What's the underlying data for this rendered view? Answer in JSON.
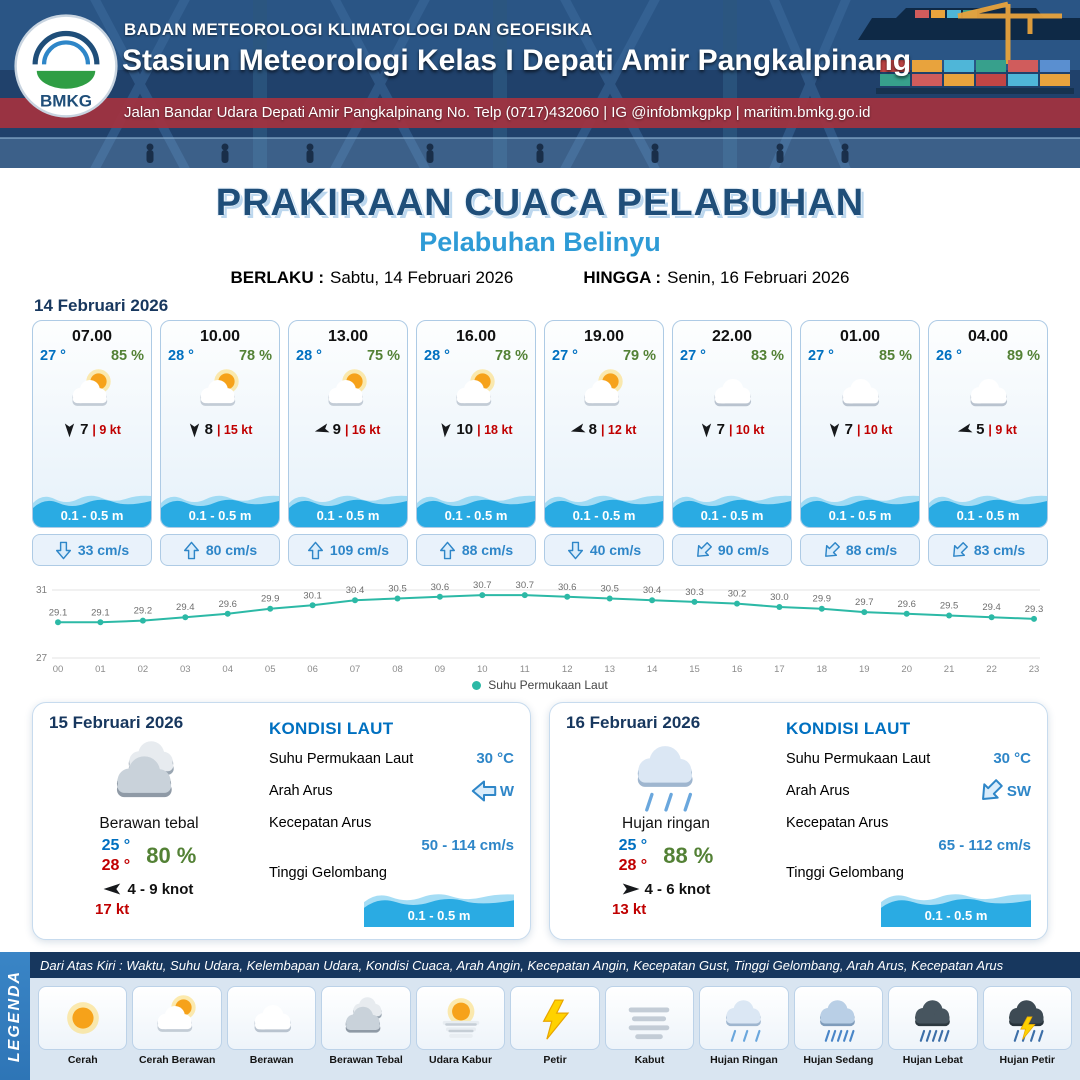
{
  "header": {
    "logo_text": "BMKG",
    "org": "BADAN METEOROLOGI KLIMATOLOGI DAN GEOFISIKA",
    "station": "Stasiun Meteorologi Kelas I Depati Amir Pangkalpinang",
    "address": "Jalan Bandar Udara Depati Amir Pangkalpinang No. Telp (0717)432060 | IG @infobmkgpkp | maritim.bmkg.go.id"
  },
  "title": {
    "main": "PRAKIRAAN CUACA PELABUHAN",
    "sub": "Pelabuhan Belinyu",
    "valid_from_label": "BERLAKU :",
    "valid_from": "Sabtu, 14 Februari 2026",
    "valid_to_label": "HINGGA :",
    "valid_to": "Senin, 16 Februari 2026"
  },
  "colors": {
    "primary_blue": "#1f4e79",
    "accent_blue": "#2e9bd6",
    "wave_blue": "#2aabe3",
    "temp_blue": "#0070c0",
    "humidity_green": "#538135",
    "gust_red": "#c00000",
    "sst_line_teal": "#2cb9a6"
  },
  "day1": {
    "date": "14 Februari 2026",
    "hours": [
      {
        "time": "07.00",
        "temp": "27 °",
        "rh": "85 %",
        "icon": "cerah-berawan",
        "wind_rot": 180,
        "wind": "7",
        "gust": "| 9 kt",
        "wave": "0.1 - 0.5 m",
        "cur_rot": 180,
        "current": "33 cm/s"
      },
      {
        "time": "10.00",
        "temp": "28 °",
        "rh": "78 %",
        "icon": "cerah-berawan",
        "wind_rot": 180,
        "wind": "8",
        "gust": "| 15 kt",
        "wave": "0.1 - 0.5 m",
        "cur_rot": 0,
        "current": "80 cm/s"
      },
      {
        "time": "13.00",
        "temp": "28 °",
        "rh": "75 %",
        "icon": "cerah-berawan",
        "wind_rot": 255,
        "wind": "9",
        "gust": "| 16 kt",
        "wave": "0.1 - 0.5 m",
        "cur_rot": 0,
        "current": "109 cm/s"
      },
      {
        "time": "16.00",
        "temp": "28 °",
        "rh": "78 %",
        "icon": "cerah-berawan",
        "wind_rot": 185,
        "wind": "10",
        "gust": "| 18 kt",
        "wave": "0.1 - 0.5 m",
        "cur_rot": 0,
        "current": "88 cm/s"
      },
      {
        "time": "19.00",
        "temp": "27 °",
        "rh": "79 %",
        "icon": "cerah-berawan",
        "wind_rot": 255,
        "wind": "8",
        "gust": "| 12 kt",
        "wave": "0.1 - 0.5 m",
        "cur_rot": 180,
        "current": "40 cm/s"
      },
      {
        "time": "22.00",
        "temp": "27 °",
        "rh": "83 %",
        "icon": "berawan",
        "wind_rot": 180,
        "wind": "7",
        "gust": "| 10 kt",
        "wave": "0.1 - 0.5 m",
        "cur_rot": 225,
        "current": "90 cm/s"
      },
      {
        "time": "01.00",
        "temp": "27 °",
        "rh": "85 %",
        "icon": "berawan",
        "wind_rot": 180,
        "wind": "7",
        "gust": "| 10 kt",
        "wave": "0.1 - 0.5 m",
        "cur_rot": 225,
        "current": "88 cm/s"
      },
      {
        "time": "04.00",
        "temp": "26 °",
        "rh": "89 %",
        "icon": "berawan",
        "wind_rot": 255,
        "wind": "5",
        "gust": "| 9 kt",
        "wave": "0.1 - 0.5 m",
        "cur_rot": 225,
        "current": "83 cm/s"
      }
    ]
  },
  "chart_data": {
    "type": "line",
    "title": "Suhu Permukaan Laut",
    "legend": "Suhu Permukaan Laut",
    "legend_position": "bottom",
    "grid": false,
    "x": [
      "00",
      "01",
      "02",
      "03",
      "04",
      "05",
      "06",
      "07",
      "08",
      "09",
      "10",
      "11",
      "12",
      "13",
      "14",
      "15",
      "16",
      "17",
      "18",
      "19",
      "20",
      "21",
      "22",
      "23"
    ],
    "values": [
      29.1,
      29.1,
      29.2,
      29.4,
      29.6,
      29.9,
      30.1,
      30.4,
      30.5,
      30.6,
      30.7,
      30.7,
      30.6,
      30.5,
      30.4,
      30.3,
      30.2,
      30.0,
      29.9,
      29.7,
      29.6,
      29.5,
      29.4,
      29.3
    ],
    "ylim": [
      27,
      31
    ],
    "line_color": "#2cb9a6"
  },
  "days": [
    {
      "date": "15 Februari 2026",
      "icon": "berawan-tebal",
      "condition": "Berawan tebal",
      "temp_min": "25 °",
      "temp_max": "28 °",
      "rh": "80 %",
      "wind_rot": 270,
      "wind": "4 - 9 knot",
      "gust": "17 kt",
      "sea": {
        "title": "KONDISI LAUT",
        "sst_label": "Suhu Permukaan Laut",
        "sst": "30 °C",
        "current_dir_label": "Arah Arus",
        "current_dir": "W",
        "current_dir_rot": 270,
        "current_speed_label": "Kecepatan Arus",
        "current_speed": "50 - 114 cm/s",
        "wave_label": "Tinggi Gelombang",
        "wave": "0.1 - 0.5 m"
      }
    },
    {
      "date": "16 Februari 2026",
      "icon": "hujan-ringan",
      "condition": "Hujan ringan",
      "temp_min": "25 °",
      "temp_max": "28 °",
      "rh": "88 %",
      "wind_rot": 90,
      "wind": "4 - 6 knot",
      "gust": "13 kt",
      "sea": {
        "title": "KONDISI LAUT",
        "sst_label": "Suhu Permukaan Laut",
        "sst": "30 °C",
        "current_dir_label": "Arah Arus",
        "current_dir": "SW",
        "current_dir_rot": 225,
        "current_speed_label": "Kecepatan Arus",
        "current_speed": "65 - 112 cm/s",
        "wave_label": "Tinggi Gelombang",
        "wave": "0.1 - 0.5 m"
      }
    }
  ],
  "legend": {
    "title": "LEGENDA",
    "note": "Dari Atas Kiri : Waktu, Suhu Udara, Kelembapan Udara, Kondisi Cuaca, Arah Angin, Kecepatan Angin, Kecepatan Gust, Tinggi Gelombang, Arah Arus, Kecepatan Arus",
    "items": [
      {
        "icon": "cerah",
        "label": "Cerah"
      },
      {
        "icon": "cerah-berawan",
        "label": "Cerah Berawan"
      },
      {
        "icon": "berawan",
        "label": "Berawan"
      },
      {
        "icon": "berawan-tebal",
        "label": "Berawan Tebal"
      },
      {
        "icon": "udara-kabur",
        "label": "Udara Kabur"
      },
      {
        "icon": "petir",
        "label": "Petir"
      },
      {
        "icon": "kabut",
        "label": "Kabut"
      },
      {
        "icon": "hujan-ringan",
        "label": "Hujan Ringan"
      },
      {
        "icon": "hujan-sedang",
        "label": "Hujan Sedang"
      },
      {
        "icon": "hujan-lebat",
        "label": "Hujan Lebat"
      },
      {
        "icon": "hujan-petir",
        "label": "Hujan Petir"
      }
    ]
  }
}
